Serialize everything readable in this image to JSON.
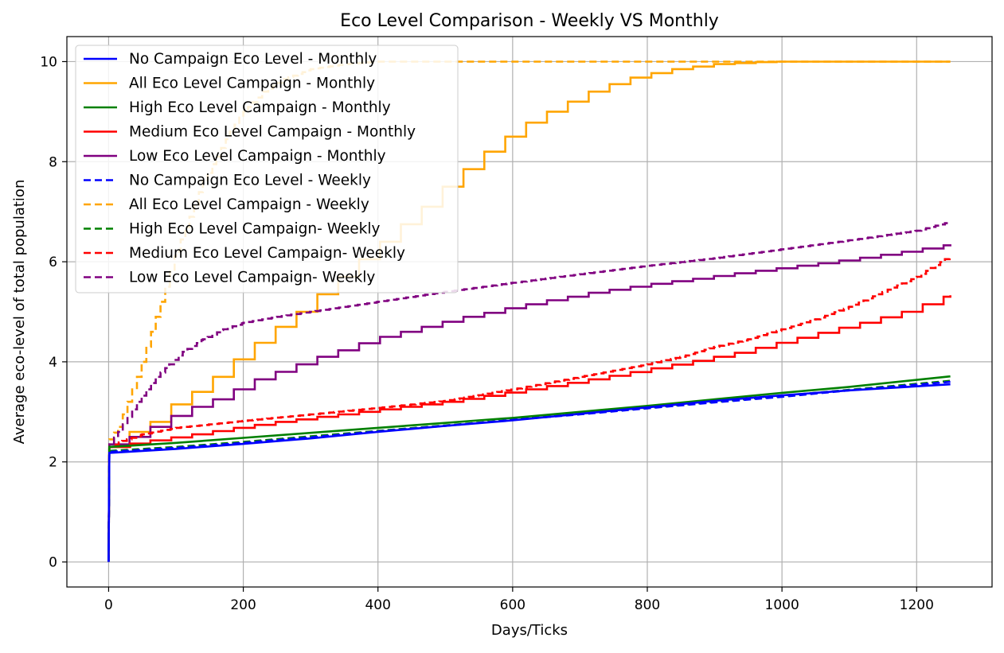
{
  "chart_data": {
    "type": "line",
    "title": "Eco Level Comparison - Weekly VS Monthly",
    "xlabel": "Days/Ticks",
    "ylabel": "Average eco-level of total population",
    "xlim": [
      -62,
      1312
    ],
    "ylim": [
      -0.5,
      10.5
    ],
    "x_ticks": [
      0,
      200,
      400,
      600,
      800,
      1000,
      1200
    ],
    "y_ticks": [
      0,
      2,
      4,
      6,
      8,
      10
    ],
    "grid": true,
    "legend_position": "upper-left",
    "series": [
      {
        "name": "No Campaign Eco Level - Monthly",
        "color": "#0000ff",
        "style": "solid",
        "points": [
          [
            0,
            0
          ],
          [
            1,
            2.18
          ],
          [
            100,
            2.26
          ],
          [
            200,
            2.36
          ],
          [
            300,
            2.47
          ],
          [
            400,
            2.6
          ],
          [
            500,
            2.72
          ],
          [
            600,
            2.83
          ],
          [
            700,
            2.96
          ],
          [
            800,
            3.09
          ],
          [
            900,
            3.22
          ],
          [
            1000,
            3.33
          ],
          [
            1100,
            3.43
          ],
          [
            1250,
            3.55
          ]
        ]
      },
      {
        "name": "All Eco Level Campaign - Monthly",
        "color": "#ffa500",
        "style": "solid",
        "step": 31,
        "points": [
          [
            0,
            0
          ],
          [
            1,
            2.3
          ],
          [
            31,
            2.6
          ],
          [
            62,
            2.8
          ],
          [
            93,
            3.15
          ],
          [
            124,
            3.4
          ],
          [
            155,
            3.7
          ],
          [
            186,
            4.05
          ],
          [
            217,
            4.38
          ],
          [
            248,
            4.7
          ],
          [
            279,
            5.0
          ],
          [
            310,
            5.35
          ],
          [
            341,
            5.7
          ],
          [
            372,
            6.05
          ],
          [
            403,
            6.4
          ],
          [
            434,
            6.75
          ],
          [
            465,
            7.1
          ],
          [
            496,
            7.5
          ],
          [
            527,
            7.85
          ],
          [
            558,
            8.2
          ],
          [
            589,
            8.5
          ],
          [
            620,
            8.78
          ],
          [
            651,
            9.0
          ],
          [
            682,
            9.2
          ],
          [
            713,
            9.4
          ],
          [
            744,
            9.55
          ],
          [
            775,
            9.68
          ],
          [
            806,
            9.77
          ],
          [
            837,
            9.85
          ],
          [
            868,
            9.9
          ],
          [
            899,
            9.95
          ],
          [
            930,
            9.97
          ],
          [
            961,
            9.99
          ],
          [
            992,
            10.0
          ],
          [
            1250,
            10.0
          ]
        ]
      },
      {
        "name": "High Eco Level Campaign - Monthly",
        "color": "#008000",
        "style": "solid",
        "points": [
          [
            0,
            0
          ],
          [
            1,
            2.3
          ],
          [
            100,
            2.38
          ],
          [
            200,
            2.48
          ],
          [
            300,
            2.58
          ],
          [
            400,
            2.68
          ],
          [
            500,
            2.78
          ],
          [
            600,
            2.88
          ],
          [
            700,
            3.0
          ],
          [
            800,
            3.12
          ],
          [
            900,
            3.25
          ],
          [
            1000,
            3.38
          ],
          [
            1100,
            3.5
          ],
          [
            1250,
            3.71
          ]
        ]
      },
      {
        "name": "Medium Eco Level Campaign - Monthly",
        "color": "#ff0000",
        "style": "solid",
        "step": 31,
        "points": [
          [
            0,
            0
          ],
          [
            1,
            2.3
          ],
          [
            62,
            2.43
          ],
          [
            124,
            2.55
          ],
          [
            186,
            2.68
          ],
          [
            248,
            2.8
          ],
          [
            310,
            2.9
          ],
          [
            372,
            3.0
          ],
          [
            434,
            3.1
          ],
          [
            496,
            3.2
          ],
          [
            558,
            3.32
          ],
          [
            620,
            3.45
          ],
          [
            682,
            3.58
          ],
          [
            744,
            3.72
          ],
          [
            806,
            3.87
          ],
          [
            868,
            4.02
          ],
          [
            930,
            4.18
          ],
          [
            992,
            4.38
          ],
          [
            1054,
            4.58
          ],
          [
            1116,
            4.78
          ],
          [
            1178,
            5.0
          ],
          [
            1240,
            5.3
          ],
          [
            1250,
            5.33
          ]
        ]
      },
      {
        "name": "Low Eco Level Campaign - Monthly",
        "color": "#800080",
        "style": "solid",
        "step": 31,
        "points": [
          [
            0,
            0
          ],
          [
            1,
            2.35
          ],
          [
            31,
            2.5
          ],
          [
            62,
            2.7
          ],
          [
            93,
            2.92
          ],
          [
            124,
            3.1
          ],
          [
            155,
            3.25
          ],
          [
            186,
            3.45
          ],
          [
            217,
            3.65
          ],
          [
            248,
            3.8
          ],
          [
            279,
            3.95
          ],
          [
            310,
            4.1
          ],
          [
            341,
            4.23
          ],
          [
            372,
            4.37
          ],
          [
            403,
            4.5
          ],
          [
            434,
            4.6
          ],
          [
            465,
            4.7
          ],
          [
            496,
            4.8
          ],
          [
            527,
            4.9
          ],
          [
            558,
            4.98
          ],
          [
            589,
            5.07
          ],
          [
            620,
            5.15
          ],
          [
            651,
            5.23
          ],
          [
            682,
            5.3
          ],
          [
            713,
            5.38
          ],
          [
            744,
            5.44
          ],
          [
            775,
            5.5
          ],
          [
            806,
            5.56
          ],
          [
            868,
            5.66
          ],
          [
            930,
            5.77
          ],
          [
            992,
            5.87
          ],
          [
            1054,
            5.97
          ],
          [
            1116,
            6.08
          ],
          [
            1178,
            6.2
          ],
          [
            1250,
            6.35
          ]
        ]
      },
      {
        "name": "No Campaign Eco Level - Weekly",
        "color": "#0000ff",
        "style": "dashed",
        "points": [
          [
            0,
            0
          ],
          [
            1,
            2.2
          ],
          [
            100,
            2.28
          ],
          [
            200,
            2.38
          ],
          [
            300,
            2.49
          ],
          [
            400,
            2.61
          ],
          [
            500,
            2.72
          ],
          [
            600,
            2.84
          ],
          [
            700,
            2.95
          ],
          [
            800,
            3.07
          ],
          [
            900,
            3.19
          ],
          [
            1000,
            3.3
          ],
          [
            1100,
            3.43
          ],
          [
            1250,
            3.6
          ]
        ]
      },
      {
        "name": "All Eco Level Campaign - Weekly",
        "color": "#ffa500",
        "style": "dashed",
        "step": 7,
        "points": [
          [
            0,
            0
          ],
          [
            1,
            2.45
          ],
          [
            14,
            2.7
          ],
          [
            28,
            3.2
          ],
          [
            42,
            3.7
          ],
          [
            56,
            4.3
          ],
          [
            70,
            4.9
          ],
          [
            84,
            5.5
          ],
          [
            100,
            6.2
          ],
          [
            120,
            6.9
          ],
          [
            140,
            7.6
          ],
          [
            160,
            8.1
          ],
          [
            180,
            8.6
          ],
          [
            200,
            9.0
          ],
          [
            230,
            9.4
          ],
          [
            260,
            9.65
          ],
          [
            300,
            9.85
          ],
          [
            350,
            9.95
          ],
          [
            400,
            10.0
          ],
          [
            1250,
            10.0
          ]
        ]
      },
      {
        "name": "High Eco Level Campaign- Weekly",
        "color": "#008000",
        "style": "dashed",
        "points": [
          [
            0,
            0
          ],
          [
            1,
            2.22
          ],
          [
            100,
            2.3
          ],
          [
            200,
            2.4
          ],
          [
            300,
            2.51
          ],
          [
            400,
            2.62
          ],
          [
            500,
            2.73
          ],
          [
            600,
            2.84
          ],
          [
            700,
            2.96
          ],
          [
            800,
            3.08
          ],
          [
            900,
            3.2
          ],
          [
            1000,
            3.32
          ],
          [
            1100,
            3.44
          ],
          [
            1250,
            3.62
          ]
        ]
      },
      {
        "name": "Medium Eco Level Campaign- Weekly",
        "color": "#ff0000",
        "style": "dashed",
        "step": 7,
        "points": [
          [
            0,
            0
          ],
          [
            1,
            2.3
          ],
          [
            20,
            2.42
          ],
          [
            50,
            2.55
          ],
          [
            100,
            2.68
          ],
          [
            150,
            2.75
          ],
          [
            200,
            2.82
          ],
          [
            300,
            2.95
          ],
          [
            400,
            3.08
          ],
          [
            500,
            3.22
          ],
          [
            600,
            3.45
          ],
          [
            700,
            3.7
          ],
          [
            800,
            3.95
          ],
          [
            850,
            4.1
          ],
          [
            900,
            4.3
          ],
          [
            950,
            4.45
          ],
          [
            1000,
            4.65
          ],
          [
            1050,
            4.85
          ],
          [
            1100,
            5.1
          ],
          [
            1150,
            5.4
          ],
          [
            1200,
            5.7
          ],
          [
            1250,
            6.12
          ]
        ]
      },
      {
        "name": "Low Eco Level Campaign- Weekly",
        "color": "#800080",
        "style": "dashed",
        "step": 7,
        "points": [
          [
            0,
            0
          ],
          [
            1,
            2.35
          ],
          [
            14,
            2.6
          ],
          [
            28,
            2.9
          ],
          [
            42,
            3.2
          ],
          [
            56,
            3.45
          ],
          [
            70,
            3.7
          ],
          [
            90,
            3.95
          ],
          [
            110,
            4.2
          ],
          [
            140,
            4.45
          ],
          [
            170,
            4.65
          ],
          [
            200,
            4.78
          ],
          [
            250,
            4.9
          ],
          [
            300,
            5.0
          ],
          [
            400,
            5.2
          ],
          [
            500,
            5.4
          ],
          [
            600,
            5.58
          ],
          [
            700,
            5.75
          ],
          [
            800,
            5.92
          ],
          [
            900,
            6.07
          ],
          [
            1000,
            6.25
          ],
          [
            1100,
            6.43
          ],
          [
            1200,
            6.62
          ],
          [
            1250,
            6.8
          ]
        ]
      }
    ]
  }
}
